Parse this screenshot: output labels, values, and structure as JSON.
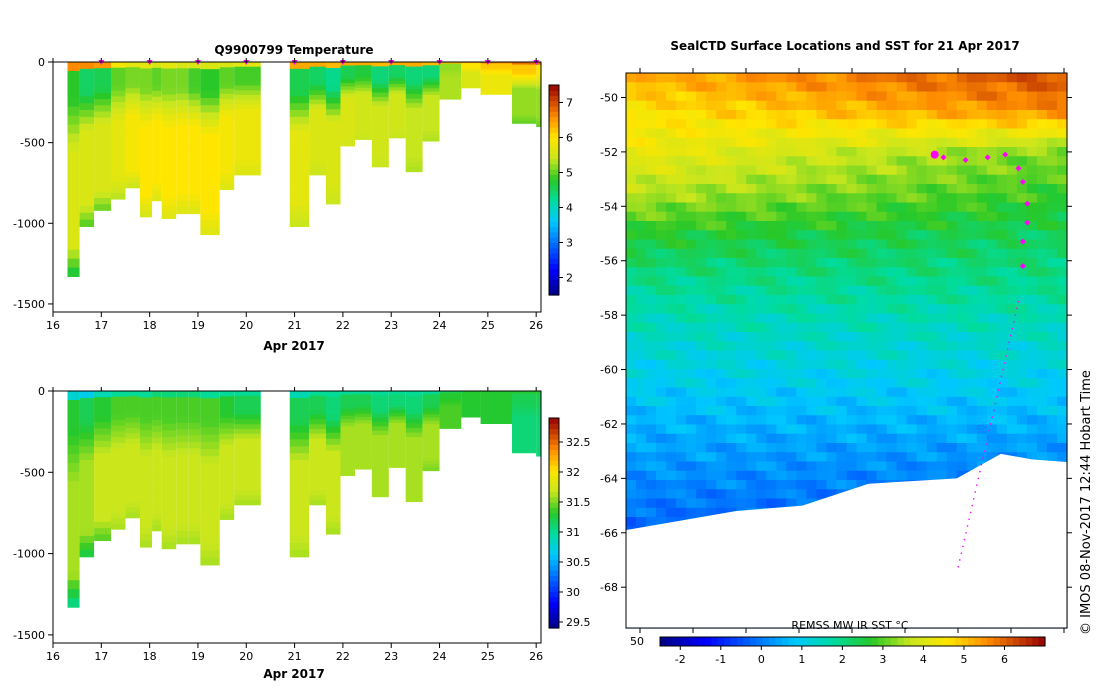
{
  "credit": "© IMOS 08-Nov-2017 12:44 Hobart Time",
  "chart_data": [
    {
      "type": "heatmap",
      "title": "Q9900799  Temperature",
      "xlabel": "Apr 2017",
      "ylabel": "",
      "x_ticks": [
        "16",
        "17",
        "18",
        "19",
        "20",
        "21",
        "22",
        "23",
        "24",
        "25",
        "26"
      ],
      "y_ticks": [
        "0",
        "-500",
        "-1000",
        "-1500"
      ],
      "xlim": [
        16,
        26.1
      ],
      "ylim": [
        -1550,
        0
      ],
      "colorbar": {
        "ticks": [
          "2",
          "3",
          "4",
          "5",
          "6",
          "7"
        ],
        "range": [
          1.5,
          7.5
        ]
      },
      "profile_marker_days": [
        17,
        18,
        19,
        20,
        21,
        22,
        23,
        24,
        25,
        26
      ],
      "gap_days": [
        20.3,
        20.9
      ],
      "profiles": [
        {
          "start": 16.3,
          "end": 16.55,
          "max_depth": -1330,
          "surface": 6.6,
          "thermocline": 4.8,
          "deep": 5.6,
          "bottom": 4.6
        },
        {
          "start": 16.55,
          "end": 16.85,
          "max_depth": -1020,
          "surface": 6.6,
          "thermocline": 4.5,
          "deep": 5.6,
          "bottom": 4.9
        },
        {
          "start": 16.85,
          "end": 17.2,
          "max_depth": -920,
          "surface": 6.5,
          "thermocline": 4.6,
          "deep": 5.6,
          "bottom": 5.0
        },
        {
          "start": 17.2,
          "end": 17.5,
          "max_depth": -850,
          "surface": 5.9,
          "thermocline": 5.0,
          "deep": 5.7,
          "bottom": 5.3
        },
        {
          "start": 17.5,
          "end": 17.8,
          "max_depth": -780,
          "surface": 5.7,
          "thermocline": 5.1,
          "deep": 5.9,
          "bottom": 5.4
        },
        {
          "start": 17.8,
          "end": 18.05,
          "max_depth": -960,
          "surface": 5.7,
          "thermocline": 5.1,
          "deep": 6.0,
          "bottom": 5.5
        },
        {
          "start": 18.05,
          "end": 18.25,
          "max_depth": -860,
          "surface": 5.6,
          "thermocline": 5.0,
          "deep": 6.0,
          "bottom": 5.6
        },
        {
          "start": 18.25,
          "end": 18.55,
          "max_depth": -970,
          "surface": 5.7,
          "thermocline": 5.1,
          "deep": 6.0,
          "bottom": 5.6
        },
        {
          "start": 18.55,
          "end": 18.8,
          "max_depth": -940,
          "surface": 5.6,
          "thermocline": 5.1,
          "deep": 6.0,
          "bottom": 5.6
        },
        {
          "start": 18.8,
          "end": 19.05,
          "max_depth": -940,
          "surface": 5.6,
          "thermocline": 4.9,
          "deep": 6.0,
          "bottom": 5.6
        },
        {
          "start": 19.05,
          "end": 19.45,
          "max_depth": -1070,
          "surface": 5.6,
          "thermocline": 4.8,
          "deep": 6.0,
          "bottom": 5.6
        },
        {
          "start": 19.45,
          "end": 19.75,
          "max_depth": -790,
          "surface": 5.6,
          "thermocline": 5.0,
          "deep": 5.9,
          "bottom": 5.6
        },
        {
          "start": 19.75,
          "end": 20.3,
          "max_depth": -700,
          "surface": 5.7,
          "thermocline": 4.9,
          "deep": 5.8,
          "bottom": 5.6
        },
        {
          "start": 20.9,
          "end": 21.3,
          "max_depth": -1020,
          "surface": 6.4,
          "thermocline": 4.6,
          "deep": 5.7,
          "bottom": 5.4
        },
        {
          "start": 21.3,
          "end": 21.65,
          "max_depth": -700,
          "surface": 6.4,
          "thermocline": 4.5,
          "deep": 5.6,
          "bottom": 5.4
        },
        {
          "start": 21.65,
          "end": 21.95,
          "max_depth": -880,
          "surface": 6.3,
          "thermocline": 4.3,
          "deep": 5.6,
          "bottom": 5.4
        },
        {
          "start": 21.95,
          "end": 22.25,
          "max_depth": -520,
          "surface": 6.4,
          "thermocline": 4.6,
          "deep": 5.6,
          "bottom": 5.5
        },
        {
          "start": 22.25,
          "end": 22.6,
          "max_depth": -480,
          "surface": 6.4,
          "thermocline": 4.7,
          "deep": 5.5,
          "bottom": 5.4
        },
        {
          "start": 22.6,
          "end": 22.95,
          "max_depth": -650,
          "surface": 6.3,
          "thermocline": 4.4,
          "deep": 5.5,
          "bottom": 5.4
        },
        {
          "start": 22.95,
          "end": 23.3,
          "max_depth": -470,
          "surface": 6.4,
          "thermocline": 4.5,
          "deep": 5.5,
          "bottom": 5.4
        },
        {
          "start": 23.3,
          "end": 23.65,
          "max_depth": -680,
          "surface": 6.4,
          "thermocline": 4.4,
          "deep": 5.4,
          "bottom": 5.3
        },
        {
          "start": 23.65,
          "end": 24.0,
          "max_depth": -490,
          "surface": 6.3,
          "thermocline": 4.4,
          "deep": 5.4,
          "bottom": 5.3
        },
        {
          "start": 24.0,
          "end": 24.45,
          "max_depth": -230,
          "surface": 6.3,
          "thermocline": 5.2,
          "deep": 5.3,
          "bottom": 5.3
        },
        {
          "start": 24.45,
          "end": 24.85,
          "max_depth": -160,
          "surface": 6.5,
          "thermocline": 6.0,
          "deep": 5.6,
          "bottom": 5.6
        },
        {
          "start": 24.85,
          "end": 25.5,
          "max_depth": -200,
          "surface": 6.7,
          "thermocline": 6.2,
          "deep": 5.8,
          "bottom": 5.8
        },
        {
          "start": 25.5,
          "end": 26.0,
          "max_depth": -380,
          "surface": 6.8,
          "thermocline": 6.2,
          "deep": 5.2,
          "bottom": 5.0
        },
        {
          "start": 26.0,
          "end": 26.1,
          "max_depth": -400,
          "surface": 6.8,
          "thermocline": 6.0,
          "deep": 5.2,
          "bottom": 5.0
        }
      ]
    },
    {
      "type": "heatmap",
      "title": "",
      "xlabel": "Apr 2017",
      "ylabel": "",
      "x_ticks": [
        "16",
        "17",
        "18",
        "19",
        "20",
        "21",
        "22",
        "23",
        "24",
        "25",
        "26"
      ],
      "y_ticks": [
        "0",
        "-500",
        "-1000",
        "-1500"
      ],
      "xlim": [
        16,
        26.1
      ],
      "ylim": [
        -1550,
        0
      ],
      "colorbar": {
        "ticks": [
          "29.5",
          "30",
          "30.5",
          "31",
          "31.5",
          "32",
          "32.5"
        ],
        "range": [
          29.4,
          32.9
        ]
      },
      "profiles": [
        {
          "start": 16.3,
          "end": 16.55,
          "max_depth": -1330,
          "surface": 30.8,
          "mid": 31.3,
          "deep": 31.6,
          "bottom": 31.0
        },
        {
          "start": 16.55,
          "end": 16.85,
          "max_depth": -1020,
          "surface": 30.7,
          "mid": 31.2,
          "deep": 31.6,
          "bottom": 31.2
        },
        {
          "start": 16.85,
          "end": 17.2,
          "max_depth": -920,
          "surface": 30.9,
          "mid": 31.3,
          "deep": 31.7,
          "bottom": 31.4
        },
        {
          "start": 17.2,
          "end": 17.5,
          "max_depth": -850,
          "surface": 31.0,
          "mid": 31.4,
          "deep": 31.7,
          "bottom": 31.6
        },
        {
          "start": 17.5,
          "end": 17.8,
          "max_depth": -780,
          "surface": 31.0,
          "mid": 31.4,
          "deep": 31.7,
          "bottom": 31.6
        },
        {
          "start": 17.8,
          "end": 18.05,
          "max_depth": -960,
          "surface": 31.0,
          "mid": 31.4,
          "deep": 31.7,
          "bottom": 31.6
        },
        {
          "start": 18.05,
          "end": 18.25,
          "max_depth": -860,
          "surface": 31.1,
          "mid": 31.4,
          "deep": 31.7,
          "bottom": 31.6
        },
        {
          "start": 18.25,
          "end": 18.55,
          "max_depth": -970,
          "surface": 31.1,
          "mid": 31.4,
          "deep": 31.7,
          "bottom": 31.6
        },
        {
          "start": 18.55,
          "end": 18.8,
          "max_depth": -940,
          "surface": 31.1,
          "mid": 31.4,
          "deep": 31.7,
          "bottom": 31.6
        },
        {
          "start": 18.8,
          "end": 19.05,
          "max_depth": -940,
          "surface": 31.1,
          "mid": 31.4,
          "deep": 31.7,
          "bottom": 31.6
        },
        {
          "start": 19.05,
          "end": 19.45,
          "max_depth": -1070,
          "surface": 31.0,
          "mid": 31.4,
          "deep": 31.7,
          "bottom": 31.6
        },
        {
          "start": 19.45,
          "end": 19.75,
          "max_depth": -790,
          "surface": 31.0,
          "mid": 31.3,
          "deep": 31.7,
          "bottom": 31.6
        },
        {
          "start": 19.75,
          "end": 20.3,
          "max_depth": -700,
          "surface": 31.0,
          "mid": 31.2,
          "deep": 31.7,
          "bottom": 31.6
        },
        {
          "start": 20.9,
          "end": 21.3,
          "max_depth": -1020,
          "surface": 30.9,
          "mid": 31.2,
          "deep": 31.7,
          "bottom": 31.6
        },
        {
          "start": 21.3,
          "end": 21.65,
          "max_depth": -700,
          "surface": 31.0,
          "mid": 31.2,
          "deep": 31.7,
          "bottom": 31.6
        },
        {
          "start": 21.65,
          "end": 21.95,
          "max_depth": -880,
          "surface": 31.0,
          "mid": 31.1,
          "deep": 31.7,
          "bottom": 31.6
        },
        {
          "start": 21.95,
          "end": 22.25,
          "max_depth": -520,
          "surface": 31.0,
          "mid": 31.2,
          "deep": 31.6,
          "bottom": 31.6
        },
        {
          "start": 22.25,
          "end": 22.6,
          "max_depth": -480,
          "surface": 31.0,
          "mid": 31.2,
          "deep": 31.6,
          "bottom": 31.6
        },
        {
          "start": 22.6,
          "end": 22.95,
          "max_depth": -650,
          "surface": 31.0,
          "mid": 31.1,
          "deep": 31.6,
          "bottom": 31.6
        },
        {
          "start": 22.95,
          "end": 23.3,
          "max_depth": -470,
          "surface": 31.0,
          "mid": 31.1,
          "deep": 31.6,
          "bottom": 31.6
        },
        {
          "start": 23.3,
          "end": 23.65,
          "max_depth": -680,
          "surface": 31.0,
          "mid": 31.1,
          "deep": 31.6,
          "bottom": 31.6
        },
        {
          "start": 23.65,
          "end": 24.0,
          "max_depth": -490,
          "surface": 31.0,
          "mid": 31.2,
          "deep": 31.6,
          "bottom": 31.5
        },
        {
          "start": 24.0,
          "end": 24.45,
          "max_depth": -230,
          "surface": 31.1,
          "mid": 31.3,
          "deep": 31.4,
          "bottom": 31.4
        },
        {
          "start": 24.45,
          "end": 24.85,
          "max_depth": -160,
          "surface": 31.3,
          "mid": 31.3,
          "deep": 31.3,
          "bottom": 31.3
        },
        {
          "start": 24.85,
          "end": 25.5,
          "max_depth": -200,
          "surface": 31.3,
          "mid": 31.3,
          "deep": 31.3,
          "bottom": 31.3
        },
        {
          "start": 25.5,
          "end": 26.0,
          "max_depth": -380,
          "surface": 31.3,
          "mid": 31.2,
          "deep": 31.1,
          "bottom": 31.1
        },
        {
          "start": 26.0,
          "end": 26.1,
          "max_depth": -400,
          "surface": 31.3,
          "mid": 31.2,
          "deep": 31.1,
          "bottom": 31.1
        }
      ]
    },
    {
      "type": "heatmap",
      "title": "SealCTD Surface Locations and SST for 21 Apr 2017",
      "xlabel": "",
      "ylabel": "",
      "y_ticks": [
        "-50",
        "-52",
        "-54",
        "-56",
        "-58",
        "-60",
        "-62",
        "-64",
        "-66",
        "-68"
      ],
      "x_ticks_visible": [
        "50"
      ],
      "ylim": [
        -69.5,
        -49.1
      ],
      "colorbar": {
        "label": "REMSS MW IR SST °C",
        "ticks": [
          "-2",
          "-1",
          "0",
          "1",
          "2",
          "3",
          "4",
          "5",
          "6"
        ],
        "range": [
          -2.5,
          7
        ]
      },
      "sst_field": {
        "lat_bands": [
          -49.1,
          -50.5,
          -52,
          -53.5,
          -55,
          -56.5,
          -58,
          -60,
          -62,
          -64,
          -66,
          -69.5
        ],
        "sst_west": [
          5.2,
          4.6,
          4.3,
          3.6,
          2.7,
          2.0,
          1.6,
          1.1,
          0.6,
          0.2,
          -0.3,
          -0.3
        ],
        "sst_east": [
          6.3,
          5.6,
          3.2,
          2.8,
          2.3,
          2.0,
          1.6,
          1.1,
          0.6,
          0.0,
          -0.4,
          -0.4
        ]
      },
      "ice_edge": [
        [
          0.0,
          -65.9
        ],
        [
          0.25,
          -65.2
        ],
        [
          0.4,
          -65.0
        ],
        [
          0.55,
          -64.2
        ],
        [
          0.75,
          -64.0
        ],
        [
          0.85,
          -63.1
        ],
        [
          0.92,
          -63.3
        ],
        [
          1.0,
          -63.4
        ]
      ],
      "seal_locations_lat": [
        -52.2,
        -52.3,
        -52.2,
        -52.1,
        -52.6,
        -53.1,
        -53.9,
        -54.6,
        -55.3,
        -56.2
      ],
      "seal_locations_lonfrac": [
        0.72,
        0.77,
        0.82,
        0.86,
        0.89,
        0.9,
        0.91,
        0.91,
        0.9,
        0.9
      ],
      "highlight_location": {
        "lonfrac": 0.7,
        "lat": -52.1
      }
    }
  ]
}
